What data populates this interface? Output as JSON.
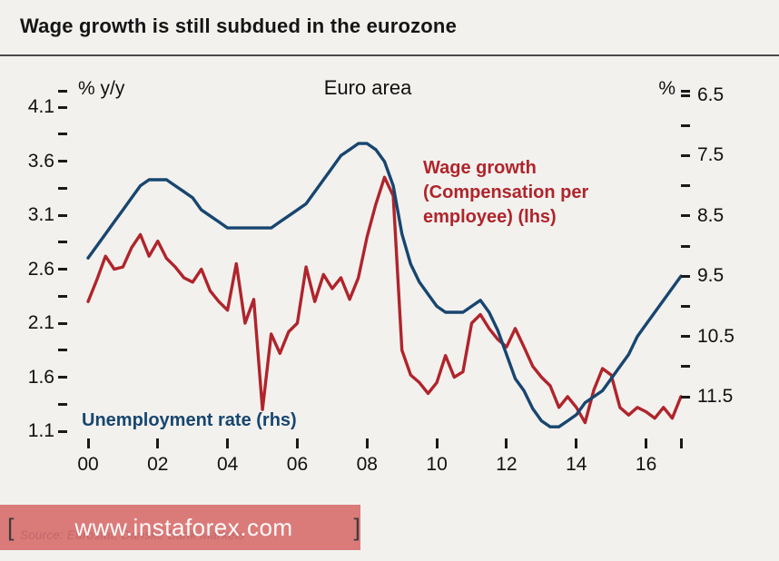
{
  "page": {
    "title": "Wage growth is still subdued in the eurozone"
  },
  "chart_data": {
    "type": "line",
    "title": "Euro area",
    "x_start": 2000,
    "x_step": 0.25,
    "x_tick_years": [
      2000,
      2002,
      2004,
      2006,
      2008,
      2010,
      2012,
      2014,
      2016
    ],
    "x_tick_labels": [
      "00",
      "02",
      "04",
      "06",
      "08",
      "10",
      "12",
      "14",
      "16"
    ],
    "x_end_tick_year": 2017,
    "left_axis": {
      "label": "% y/y",
      "ticks": [
        "4.1",
        "3.6",
        "3.1",
        "2.6",
        "2.1",
        "1.6",
        "1.1"
      ],
      "tick_values": [
        4.1,
        3.6,
        3.1,
        2.6,
        2.1,
        1.6,
        1.1
      ],
      "range": [
        1.1,
        4.1
      ],
      "inverted": false
    },
    "right_axis": {
      "label": "%",
      "ticks": [
        "6.5",
        "7.5",
        "8.5",
        "9.5",
        "10.5",
        "11.5"
      ],
      "tick_values": [
        6.5,
        7.5,
        8.5,
        9.5,
        10.5,
        11.5
      ],
      "range": [
        6.5,
        11.5
      ],
      "inverted": true
    },
    "grid": false,
    "series": [
      {
        "name": "Wage growth (Compensation per employee) (lhs)",
        "axis": "left",
        "color": "#b0242b",
        "values": [
          2.3,
          2.5,
          2.72,
          2.6,
          2.62,
          2.8,
          2.92,
          2.72,
          2.86,
          2.7,
          2.62,
          2.52,
          2.48,
          2.6,
          2.4,
          2.3,
          2.22,
          2.65,
          2.1,
          2.32,
          1.3,
          2.0,
          1.82,
          2.02,
          2.1,
          2.62,
          2.3,
          2.55,
          2.42,
          2.52,
          2.32,
          2.52,
          2.9,
          3.2,
          3.45,
          3.28,
          1.85,
          1.62,
          1.55,
          1.45,
          1.55,
          1.8,
          1.6,
          1.65,
          2.1,
          2.18,
          2.05,
          1.95,
          1.88,
          2.05,
          1.88,
          1.7,
          1.6,
          1.52,
          1.32,
          1.42,
          1.32,
          1.18,
          1.48,
          1.68,
          1.62,
          1.32,
          1.25,
          1.32,
          1.28,
          1.22,
          1.32,
          1.22,
          1.42
        ]
      },
      {
        "name": "Unemployment rate (rhs)",
        "axis": "right",
        "color": "#17466f",
        "values": [
          9.2,
          9.0,
          8.8,
          8.6,
          8.4,
          8.2,
          8.0,
          7.9,
          7.9,
          7.9,
          8.0,
          8.1,
          8.2,
          8.4,
          8.5,
          8.6,
          8.7,
          8.7,
          8.7,
          8.7,
          8.7,
          8.7,
          8.6,
          8.5,
          8.4,
          8.3,
          8.1,
          7.9,
          7.7,
          7.5,
          7.4,
          7.3,
          7.3,
          7.4,
          7.6,
          8.0,
          8.8,
          9.3,
          9.6,
          9.8,
          10.0,
          10.1,
          10.1,
          10.1,
          10.0,
          9.9,
          10.1,
          10.4,
          10.8,
          11.2,
          11.4,
          11.7,
          11.9,
          12.0,
          12.0,
          11.9,
          11.8,
          11.6,
          11.5,
          11.4,
          11.2,
          11.0,
          10.8,
          10.5,
          10.3,
          10.1,
          9.9,
          9.7,
          9.5
        ]
      }
    ]
  },
  "annotations": {
    "wage_lines": [
      "Wage growth",
      "(Compensation per",
      "employee) (lhs)"
    ],
    "wage_color": "#b0242b",
    "unemployment": "Unemployment rate (rhs)",
    "unemployment_color": "#17466f"
  },
  "footer": {
    "source": "Source: Eurostat, Danske Bank Markets",
    "watermark_text": "www.instaforex.com",
    "bracket_left": "[",
    "bracket_right": "]",
    "watermark_bg": "#d66a6a"
  }
}
